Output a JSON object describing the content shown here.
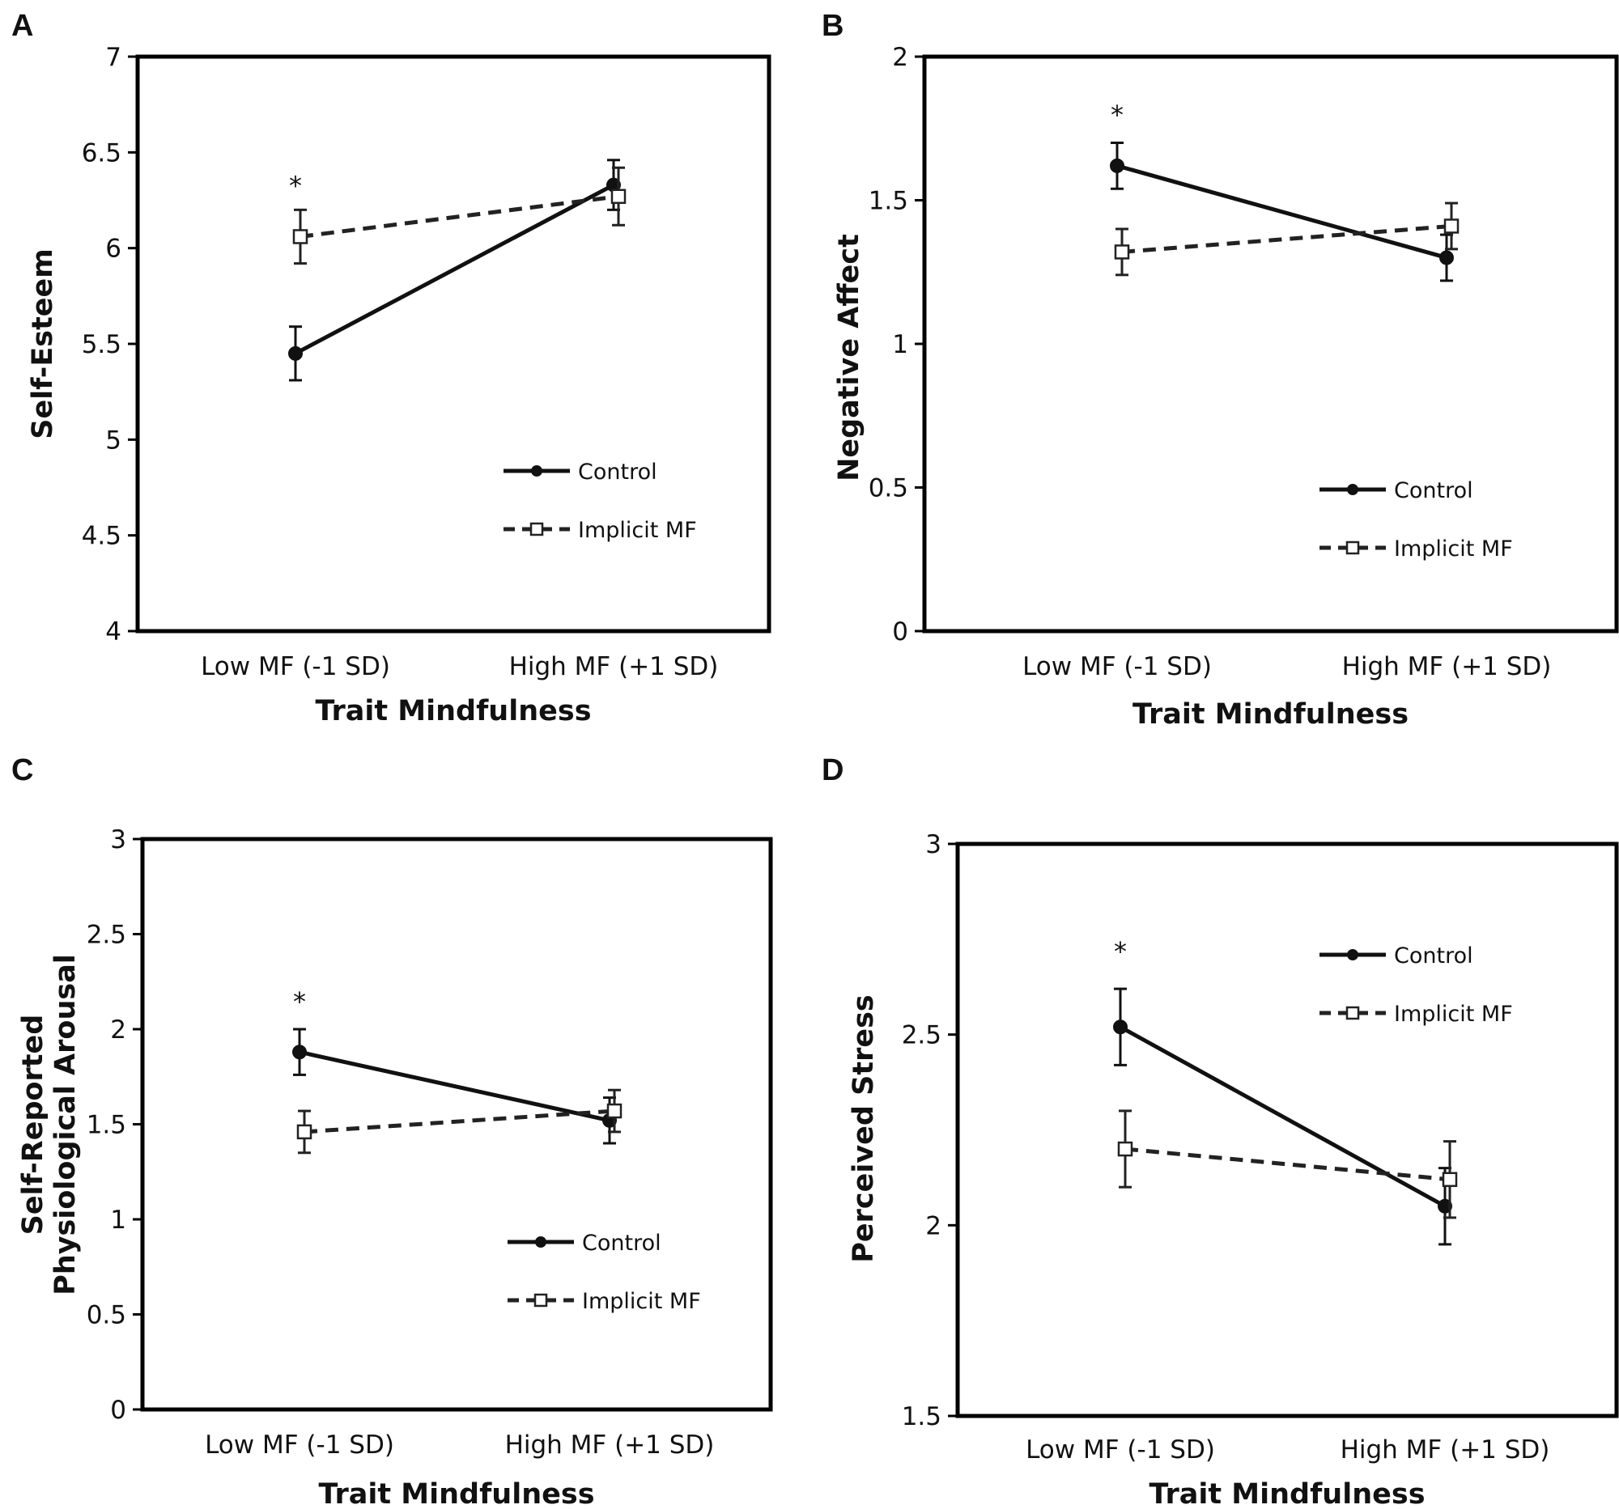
{
  "colors": {
    "control": "#111111",
    "implicit": "#222222",
    "marker_fill_implicit": "#ffffff",
    "axis": "#000000"
  },
  "chart_data": [
    {
      "panel": "A",
      "type": "line",
      "title": "",
      "xlabel": "Trait Mindfulness",
      "ylabel": [
        "Self-Esteem"
      ],
      "categories": [
        "Low MF (-1 SD)",
        "High MF (+1 SD)"
      ],
      "ylim": [
        4,
        7
      ],
      "yticks": [
        4,
        4.5,
        5,
        5.5,
        6,
        6.5,
        7
      ],
      "ytick_labels": [
        "4",
        "4.5",
        "5",
        "5.5",
        "6",
        "6.5",
        "7"
      ],
      "series": [
        {
          "name": "Control",
          "style": "solid",
          "marker": "filled-circle",
          "values": [
            5.45,
            6.33
          ],
          "errors": [
            0.14,
            0.13
          ]
        },
        {
          "name": "Implicit MF",
          "style": "dashed",
          "marker": "open-square",
          "values": [
            6.06,
            6.27
          ],
          "errors": [
            0.14,
            0.15
          ]
        }
      ],
      "significance": [
        {
          "category": "Low MF (-1 SD)",
          "y": 6.33,
          "label": "*"
        }
      ],
      "legend_position": "bottom-right"
    },
    {
      "panel": "B",
      "type": "line",
      "title": "",
      "xlabel": "Trait Mindfulness",
      "ylabel": [
        "Negative Affect"
      ],
      "categories": [
        "Low MF (-1 SD)",
        "High MF (+1 SD)"
      ],
      "ylim": [
        0,
        2
      ],
      "yticks": [
        0,
        0.5,
        1,
        1.5,
        2
      ],
      "ytick_labels": [
        "0",
        "0.5",
        "1",
        "1.5",
        "2"
      ],
      "series": [
        {
          "name": "Control",
          "style": "solid",
          "marker": "filled-circle",
          "values": [
            1.62,
            1.3
          ],
          "errors": [
            0.08,
            0.08
          ]
        },
        {
          "name": "Implicit MF",
          "style": "dashed",
          "marker": "open-square",
          "values": [
            1.32,
            1.41
          ],
          "errors": [
            0.08,
            0.08
          ]
        }
      ],
      "significance": [
        {
          "category": "Low MF (-1 SD)",
          "y": 1.8,
          "label": "*"
        }
      ],
      "legend_position": "bottom-right"
    },
    {
      "panel": "C",
      "type": "line",
      "title": "",
      "xlabel": "Trait Mindfulness",
      "ylabel": [
        "Self-Reported",
        "Physiological Arousal"
      ],
      "categories": [
        "Low MF (-1 SD)",
        "High MF (+1 SD)"
      ],
      "ylim": [
        0,
        3
      ],
      "yticks": [
        0,
        0.5,
        1,
        1.5,
        2,
        2.5,
        3
      ],
      "ytick_labels": [
        "0",
        "0.5",
        "1",
        "1.5",
        "2",
        "2.5",
        "3"
      ],
      "series": [
        {
          "name": "Control",
          "style": "solid",
          "marker": "filled-circle",
          "values": [
            1.88,
            1.52
          ],
          "errors": [
            0.12,
            0.12
          ]
        },
        {
          "name": "Implicit MF",
          "style": "dashed",
          "marker": "open-square",
          "values": [
            1.46,
            1.57
          ],
          "errors": [
            0.11,
            0.11
          ]
        }
      ],
      "significance": [
        {
          "category": "Low MF (-1 SD)",
          "y": 2.15,
          "label": "*"
        }
      ],
      "legend_position": "bottom-right"
    },
    {
      "panel": "D",
      "type": "line",
      "title": "",
      "xlabel": "Trait Mindfulness",
      "ylabel": [
        "Perceived Stress"
      ],
      "categories": [
        "Low MF (-1 SD)",
        "High MF (+1 SD)"
      ],
      "ylim": [
        1.5,
        3
      ],
      "yticks": [
        1.5,
        2,
        2.5,
        3
      ],
      "ytick_labels": [
        "1.5",
        "2",
        "2.5",
        "3"
      ],
      "series": [
        {
          "name": "Control",
          "style": "solid",
          "marker": "filled-circle",
          "values": [
            2.52,
            2.05
          ],
          "errors": [
            0.1,
            0.1
          ]
        },
        {
          "name": "Implicit MF",
          "style": "dashed",
          "marker": "open-square",
          "values": [
            2.2,
            2.12
          ],
          "errors": [
            0.1,
            0.1
          ]
        }
      ],
      "significance": [
        {
          "category": "Low MF (-1 SD)",
          "y": 2.72,
          "label": "*"
        }
      ],
      "legend_position": "top-right"
    }
  ]
}
